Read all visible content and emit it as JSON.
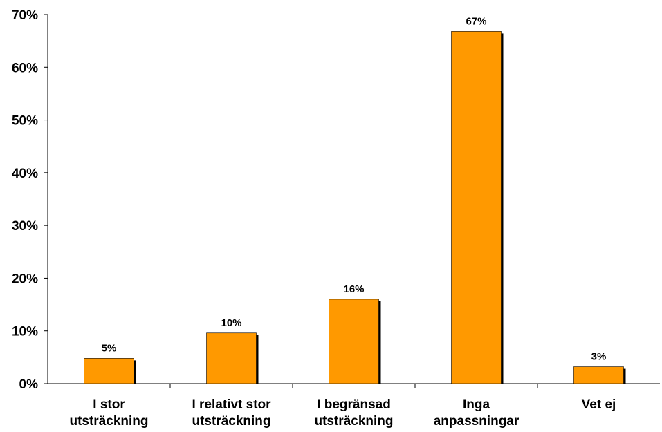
{
  "chart_data": {
    "type": "bar",
    "categories": [
      [
        "I stor",
        "utsträckning"
      ],
      [
        "I relativt stor",
        "utsträckning"
      ],
      [
        "I begränsad",
        "utsträckning"
      ],
      [
        "Inga",
        "anpassningar"
      ],
      [
        "Vet ej"
      ]
    ],
    "values": [
      4.8,
      9.6,
      16.0,
      66.8,
      3.2
    ],
    "data_labels": [
      "5%",
      "10%",
      "16%",
      "67%",
      "3%"
    ],
    "yticks": [
      0,
      10,
      20,
      30,
      40,
      50,
      60,
      70
    ],
    "ytick_labels": [
      "0%",
      "10%",
      "20%",
      "30%",
      "40%",
      "50%",
      "60%",
      "70%"
    ],
    "ylim": [
      0,
      70
    ],
    "grid": false,
    "legend": false,
    "colors": {
      "bar": "#FF9900",
      "bar_shadow": "#000000",
      "axis": "#000000"
    }
  }
}
